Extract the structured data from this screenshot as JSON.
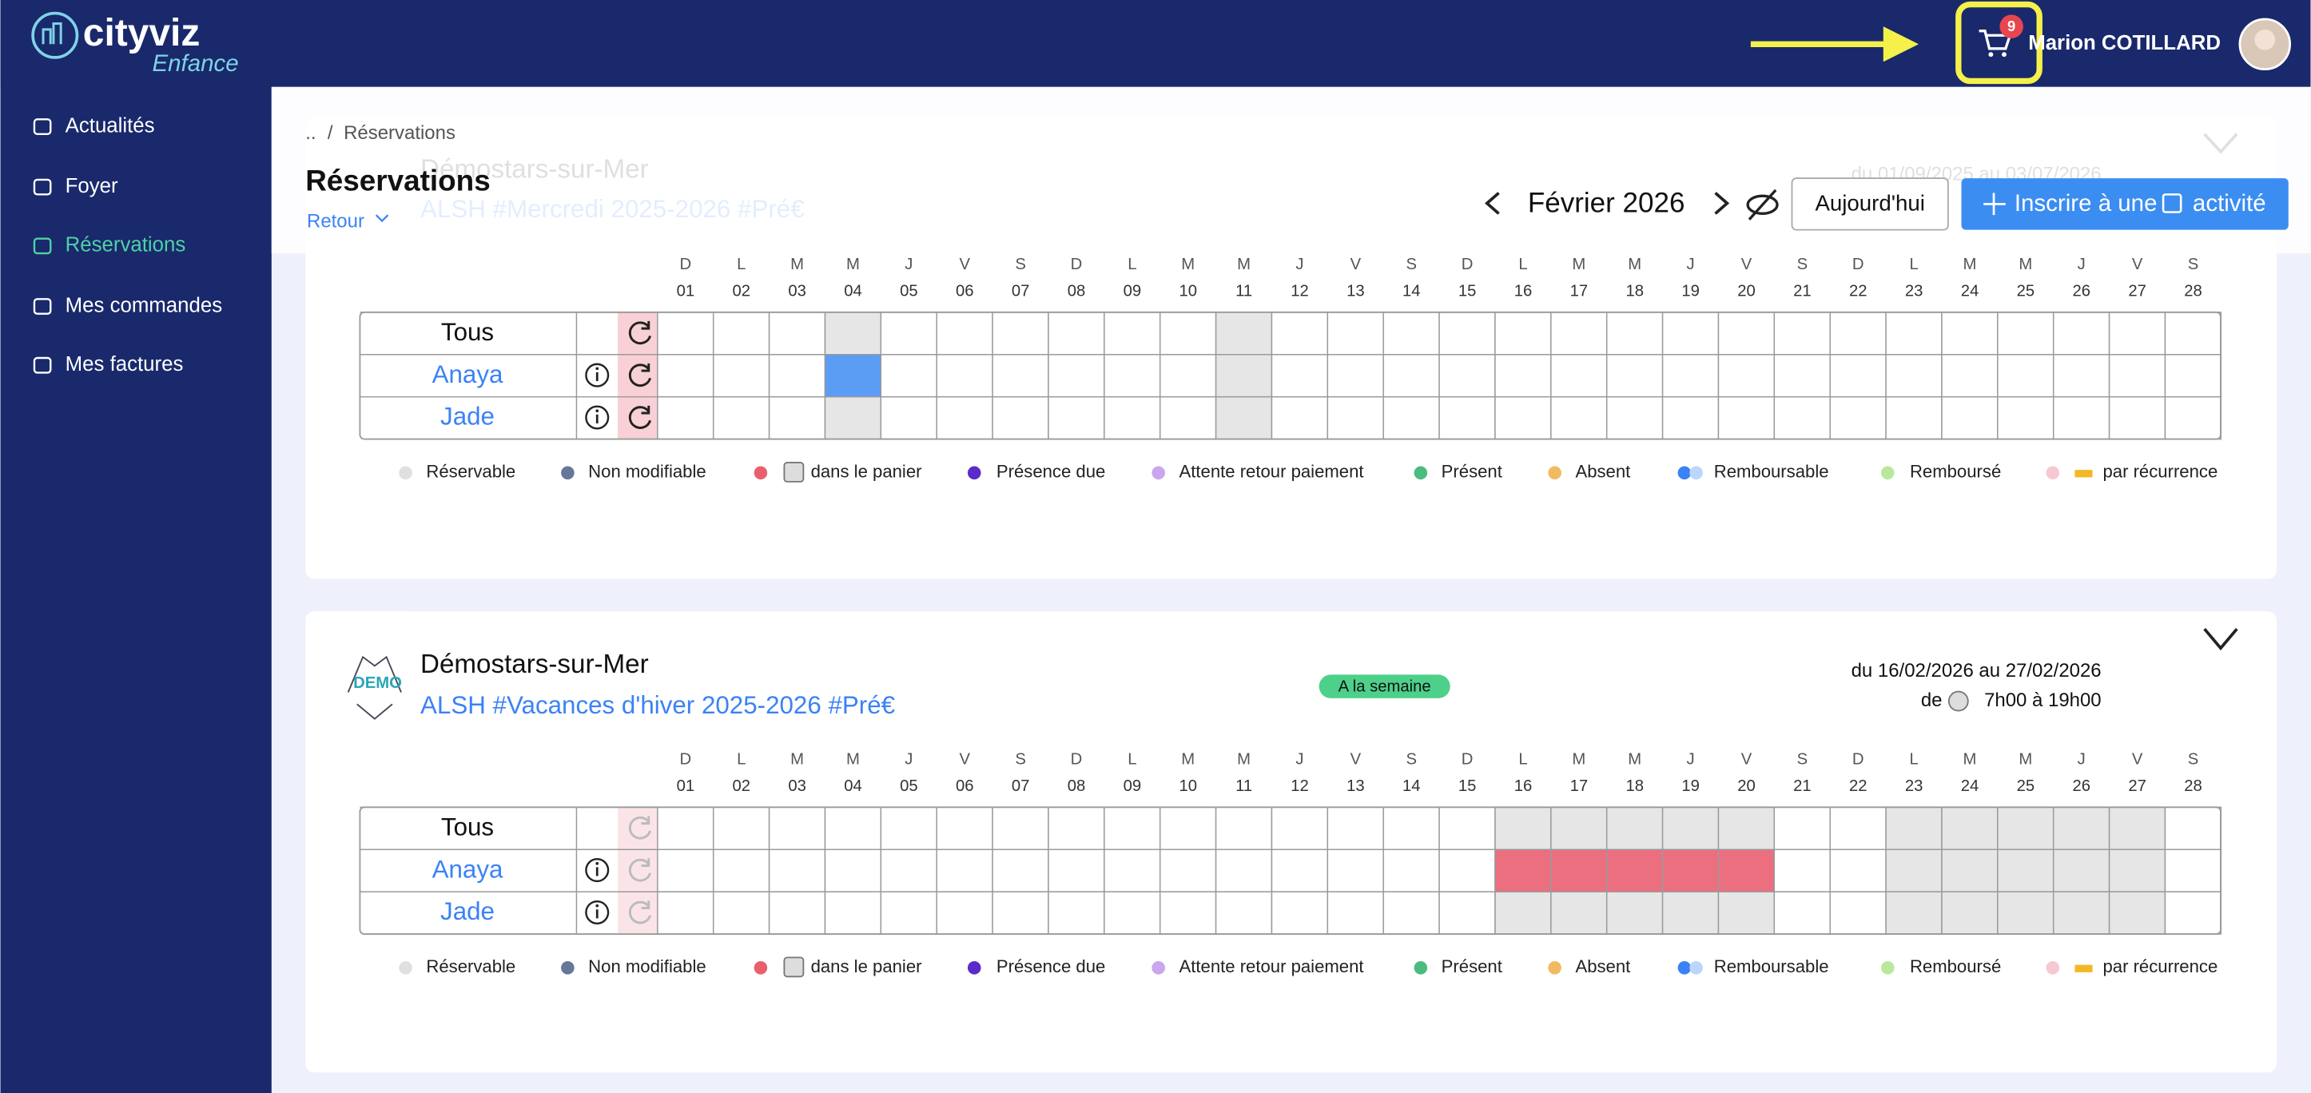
{
  "header": {
    "logo": "cityviz",
    "logo_sub": "Enfance",
    "cart_count": 9,
    "user": "Marion COTILLARD"
  },
  "nav": [
    "Actualités",
    "Foyer",
    "Réservations",
    "Mes commandes",
    "Mes factures"
  ],
  "breadcrumb": {
    "parent": "..",
    "separator": "/",
    "current": "Réservations"
  },
  "page": {
    "title": "Réservations",
    "back": "Retour"
  },
  "calendar": {
    "month": "Février 2026",
    "today": "Aujourd'hui",
    "add_before": "Inscrire à une",
    "add_after": "activité",
    "day_letters": [
      "D",
      "L",
      "M",
      "M",
      "J",
      "V",
      "S",
      "D",
      "L",
      "M",
      "M",
      "J",
      "V",
      "S",
      "D",
      "L",
      "M",
      "M",
      "J",
      "V",
      "S",
      "D",
      "L",
      "M",
      "M",
      "J",
      "V",
      "S"
    ],
    "day_numbers": [
      "01",
      "02",
      "03",
      "04",
      "05",
      "06",
      "07",
      "08",
      "09",
      "10",
      "11",
      "12",
      "13",
      "14",
      "15",
      "16",
      "17",
      "18",
      "19",
      "20",
      "21",
      "22",
      "23",
      "24",
      "25",
      "26",
      "27",
      "28"
    ]
  },
  "legend": [
    "Réservable",
    "Non modifiable",
    "dans le panier",
    "Présence due",
    "Attente retour paiement",
    "Présent",
    "Absent",
    "Remboursable",
    "Remboursé",
    "par récurrence"
  ],
  "cards": [
    {
      "org": "Démostars-sur-Mer",
      "activity": "ALSH #Mercredi 2025-2026 #Pré€",
      "dates": "du 01/09/2025 au 03/07/2026",
      "rows": [
        "Tous",
        "Anaya",
        "Jade"
      ]
    },
    {
      "org": "Démostars-sur-Mer",
      "activity": "ALSH #Vacances d'hiver 2025-2026 #Pré€",
      "tag": "A la semaine",
      "dates": "du 16/02/2026 au 27/02/2026",
      "hours_prefix": "de",
      "hours": "7h00 à 19h00",
      "logo": "DEMO",
      "rows": [
        "Tous",
        "Anaya",
        "Jade"
      ]
    }
  ]
}
